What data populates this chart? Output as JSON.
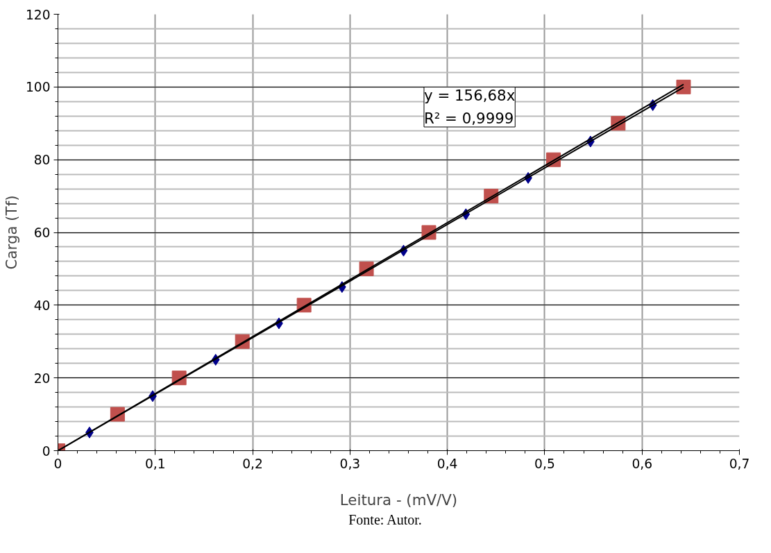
{
  "chart_data": {
    "type": "scatter",
    "xlabel": "Leitura - (mV/V)",
    "ylabel": "Carga (Tf)",
    "xlim": [
      0,
      0.7
    ],
    "ylim": [
      0,
      120
    ],
    "xticks": [
      0,
      {
        "value": 0.1,
        "label": "0,1"
      },
      {
        "value": 0.2,
        "label": "0,2"
      },
      {
        "value": 0.3,
        "label": "0,3"
      },
      {
        "value": 0.4,
        "label": "0,4"
      },
      {
        "value": 0.5,
        "label": "0,5"
      },
      {
        "value": 0.6,
        "label": "0,6"
      },
      {
        "value": 0.7,
        "label": "0,7"
      }
    ],
    "yticks": [
      0,
      20,
      40,
      60,
      80,
      100,
      120
    ],
    "grid": true,
    "series": [
      {
        "marker": "square",
        "color": "#c0504d",
        "x": [
          0,
          0.0612,
          0.1245,
          0.1894,
          0.2528,
          0.3169,
          0.381,
          0.445,
          0.509,
          0.5755,
          0.6426
        ],
        "values": [
          0,
          10,
          20,
          30,
          40,
          50,
          60,
          70,
          80,
          90,
          100
        ]
      },
      {
        "marker": "diamond",
        "color": "#00008b",
        "x": [
          0.0324,
          0.0973,
          0.162,
          0.227,
          0.2918,
          0.355,
          0.419,
          0.483,
          0.547,
          0.611
        ],
        "values": [
          5,
          15,
          25,
          35,
          45,
          55,
          65,
          75,
          85,
          95
        ]
      },
      {
        "type": "line",
        "color": "#000000",
        "x": [
          0,
          0.6426
        ],
        "values": [
          0,
          100.7
        ]
      },
      {
        "type": "line",
        "color": "#000000",
        "x": [
          0,
          0.6426
        ],
        "values": [
          0,
          99.9
        ]
      }
    ],
    "annotations": [
      "y = 156,68x\nR² = 0,9999",
      "Fonte: Autor."
    ]
  }
}
